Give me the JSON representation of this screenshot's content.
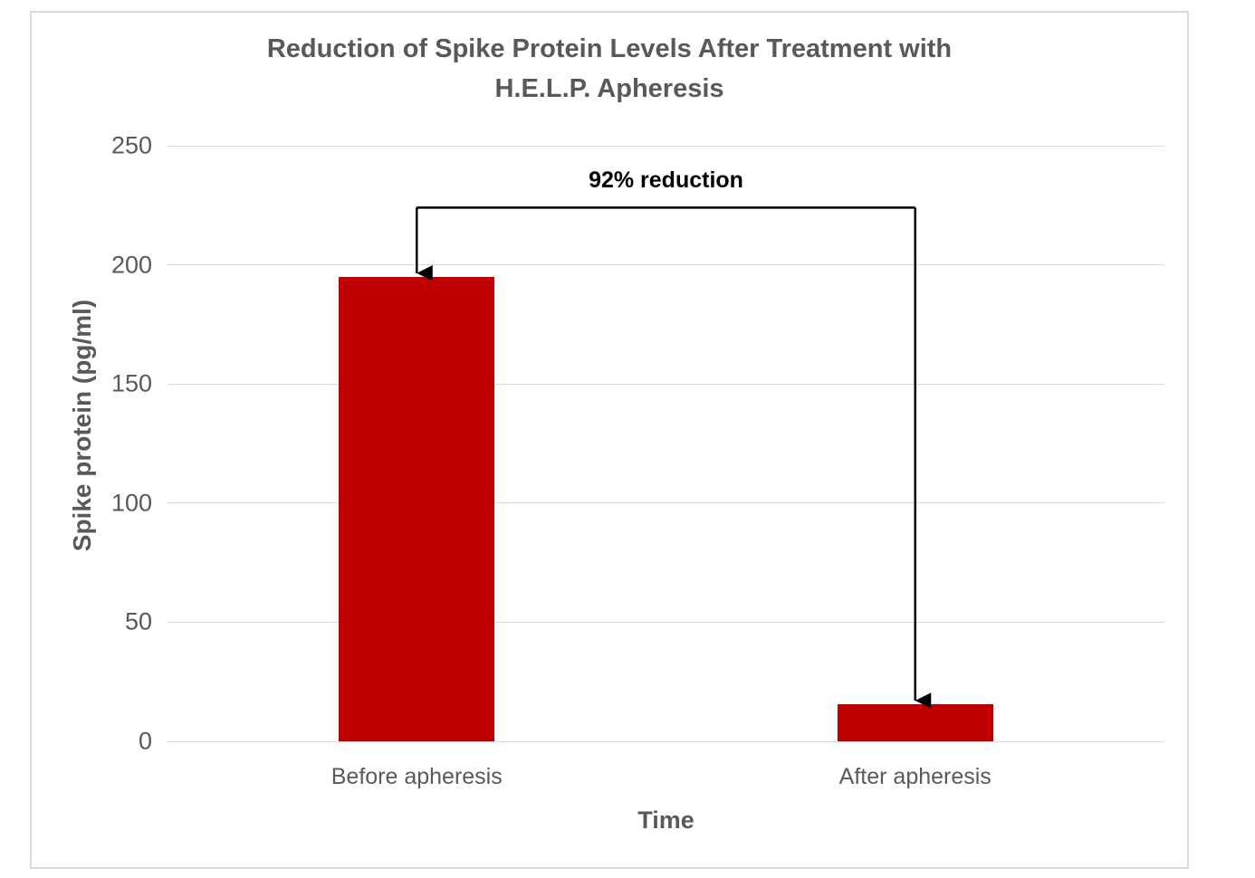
{
  "colors": {
    "background": "#ffffff",
    "canvas_border": "#d9d9d9",
    "gridline": "#d9d9d9",
    "axis_text": "#595959",
    "title_text": "#595959",
    "bar": "#c00000",
    "annotation": "#000000"
  },
  "chart_data": {
    "type": "bar",
    "title": "Reduction of Spike Protein Levels After Treatment with H.E.L.P. Apheresis",
    "title_lines": [
      "Reduction of Spike Protein Levels After Treatment with",
      "H.E.L.P. Apheresis"
    ],
    "categories": [
      "Before apheresis",
      "After apheresis"
    ],
    "values": [
      195,
      15.6
    ],
    "xlabel": "Time",
    "ylabel": "Spike protein (pg/ml)",
    "ylim": [
      0,
      250
    ],
    "yticks": [
      0,
      50,
      100,
      150,
      200,
      250
    ],
    "grid": "horizontal",
    "legend": "none",
    "bar_color": "#c00000",
    "annotation": {
      "text": "92% reduction",
      "from_category": "Before apheresis",
      "to_category": "After apheresis",
      "bracket_value": 224
    }
  }
}
